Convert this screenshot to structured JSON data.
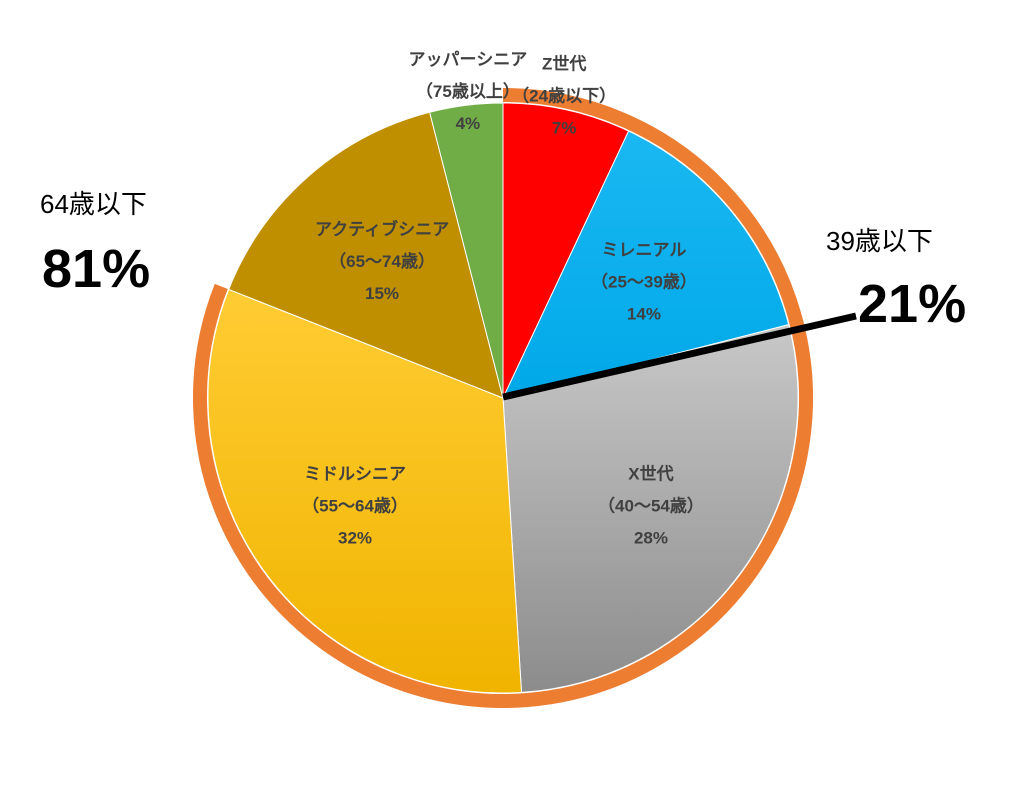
{
  "chart_data": {
    "type": "pie",
    "title": "",
    "slices": [
      {
        "name": "Z世代",
        "range": "（24歳以下）",
        "value": 7,
        "label": "7%",
        "color": "#ff0000"
      },
      {
        "name": "ミレニアル",
        "range": "（25～39歳）",
        "value": 14,
        "label": "14%",
        "color": "#00b0f0"
      },
      {
        "name": "X世代",
        "range": "（40～54歳）",
        "value": 28,
        "label": "28%",
        "color": "#a6a6a6"
      },
      {
        "name": "ミドルシニア",
        "range": "（55～64歳）",
        "value": 32,
        "label": "32%",
        "color": "#ffc000"
      },
      {
        "name": "アクティブシニア",
        "range": "（65～74歳）",
        "value": 15,
        "label": "15%",
        "color": "#bf8f00"
      },
      {
        "name": "アッパーシニア",
        "range": "（75歳以上）",
        "value": 4,
        "label": "4%",
        "color": "#70ad47"
      }
    ],
    "start": "12 o'clock",
    "direction": "clockwise",
    "highlight_arc": {
      "color": "#ed7d31",
      "covers": "Z世代 through ミドルシニア"
    },
    "callouts": [
      {
        "title": "64歳以下",
        "value": "81%",
        "position": "left"
      },
      {
        "title": "39歳以下",
        "value": "21%",
        "position": "right"
      }
    ]
  }
}
